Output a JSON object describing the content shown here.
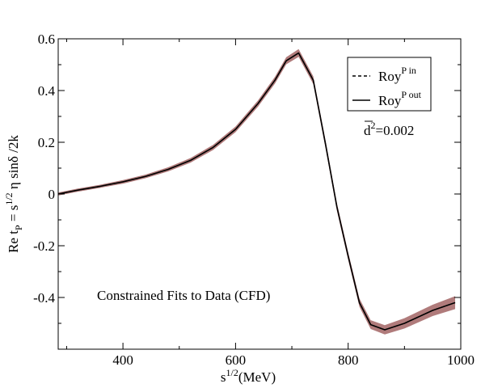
{
  "chart_data": {
    "type": "line",
    "title": "",
    "xlabel": "s",
    "xlabel_sup": "1/2",
    "xlabel_unit": "(MeV)",
    "ylabel_parts": {
      "a": "Re t",
      "a_sub": "P",
      "b": " = s",
      "b_sup": "1/2",
      "c": " η sinδ /2k"
    },
    "xlim": [
      285,
      1000
    ],
    "ylim": [
      -0.6,
      0.6
    ],
    "x_ticks": [
      400,
      600,
      800,
      1000
    ],
    "x_tick_labels": [
      "400",
      "600",
      "800",
      "1000"
    ],
    "y_ticks": [
      -0.4,
      -0.2,
      0,
      0.2,
      0.4,
      0.6
    ],
    "y_tick_labels": [
      "-0.4",
      "-0.2",
      "0",
      "0.2",
      "0.4",
      "0.6"
    ],
    "series": [
      {
        "name": "Roy",
        "name_sup": "P in",
        "style": "dashed",
        "color": "#000000",
        "x": [
          285,
          320,
          360,
          400,
          440,
          480,
          520,
          560,
          600,
          640,
          670,
          690,
          712,
          738,
          760,
          780,
          800,
          820,
          840,
          865,
          900,
          950,
          990
        ],
        "y": [
          0.0,
          0.015,
          0.03,
          0.047,
          0.068,
          0.095,
          0.13,
          0.18,
          0.25,
          0.35,
          0.44,
          0.515,
          0.545,
          0.44,
          0.19,
          -0.05,
          -0.24,
          -0.42,
          -0.505,
          -0.525,
          -0.5,
          -0.45,
          -0.42
        ]
      },
      {
        "name": "Roy",
        "name_sup": "P out",
        "style": "solid",
        "color": "#000000",
        "x": [
          285,
          320,
          360,
          400,
          440,
          480,
          520,
          560,
          600,
          640,
          670,
          690,
          712,
          738,
          760,
          780,
          800,
          820,
          840,
          865,
          900,
          950,
          990
        ],
        "y": [
          0.0,
          0.015,
          0.03,
          0.047,
          0.068,
          0.095,
          0.13,
          0.18,
          0.25,
          0.35,
          0.44,
          0.515,
          0.545,
          0.44,
          0.19,
          -0.05,
          -0.24,
          -0.42,
          -0.505,
          -0.525,
          -0.5,
          -0.45,
          -0.42
        ]
      }
    ],
    "band": {
      "name": "uncertainty band",
      "color": "#b07b7b",
      "x": [
        285,
        320,
        360,
        400,
        440,
        480,
        520,
        560,
        600,
        640,
        670,
        690,
        712,
        738,
        760,
        780,
        800,
        820,
        840,
        865,
        900,
        950,
        990
      ],
      "half_width": [
        0.006,
        0.006,
        0.006,
        0.007,
        0.007,
        0.008,
        0.009,
        0.01,
        0.011,
        0.012,
        0.013,
        0.014,
        0.015,
        0.015,
        0.015,
        0.015,
        0.015,
        0.016,
        0.017,
        0.018,
        0.02,
        0.022,
        0.025
      ]
    },
    "annotations": {
      "fit_label": "Constrained Fits to Data (CFD)",
      "dbar_base": "d",
      "dbar_sup": "2",
      "dbar_value": "=0.002"
    },
    "legend": {
      "placement": "top-right"
    }
  }
}
